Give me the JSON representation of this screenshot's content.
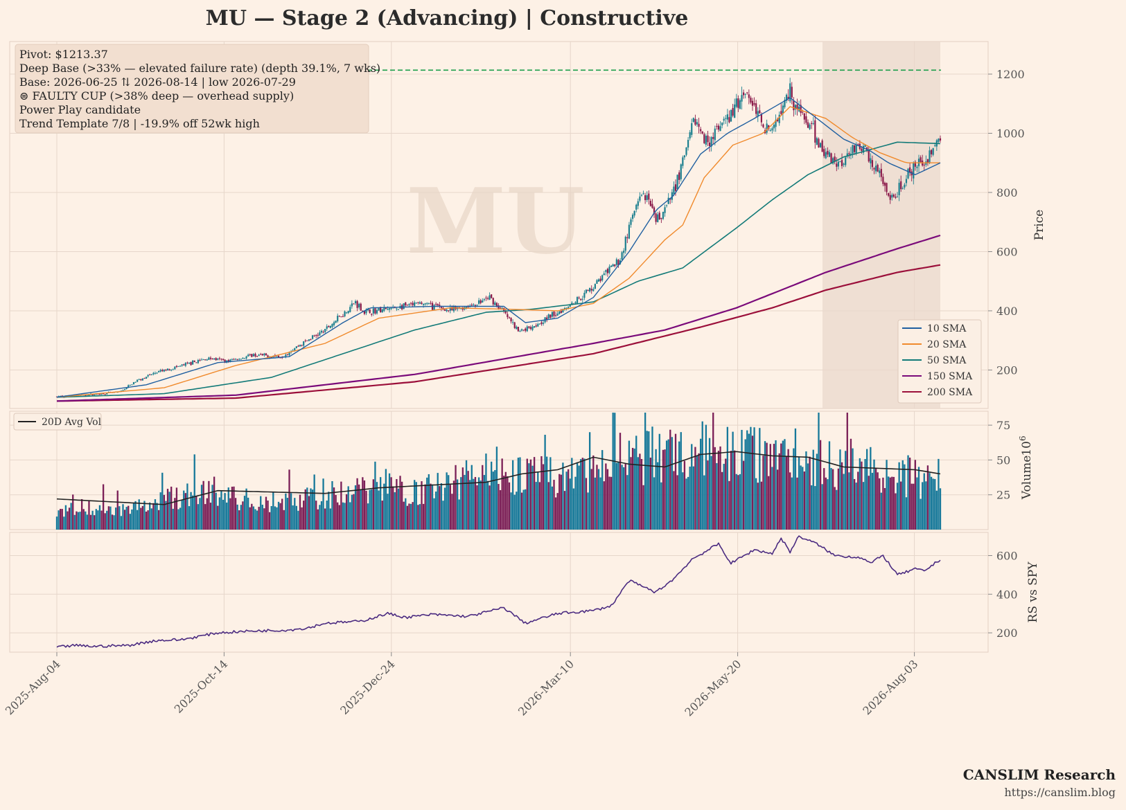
{
  "title": "MU  —  Stage 2 (Advancing)  |  Constructive",
  "watermark": "MU",
  "branding": {
    "name": "CANSLIM Research",
    "url": "https://canslim.blog"
  },
  "annotation_lines": [
    "Pivot: $1213.37",
    "Deep Base (>33% — elevated failure rate)  (depth 39.1%, 7 wks)",
    "Base: 2026-06-25 ⇅ 2026-08-14  |  low 2026-07-29",
    "⊜ FAULTY CUP (>38% deep — overhead supply)",
    "Power Play candidate",
    "Trend Template 7/8  |  -19.9% off 52wk high"
  ],
  "colors": {
    "background": "#fdf1e6",
    "up": "#1b7f8e",
    "down": "#8b1a4a",
    "vol_up": "#17799a",
    "vol_down": "#7b1f57",
    "sma10": "#1f5fa0",
    "sma20": "#f08a2c",
    "sma50": "#127a78",
    "sma150": "#7a0a7a",
    "sma200": "#9b0f3a",
    "pivot": "#1a9e4a",
    "rs": "#4a2a80",
    "avgvol": "#222222",
    "base_shade": "#e9d8cc"
  },
  "chart_data": {
    "type": "candlestick",
    "x_ticks": [
      "2025-Aug-04",
      "2025-Oct-14",
      "2025-Dec-24",
      "2026-Mar-10",
      "2026-May-20",
      "2026-Aug-03"
    ],
    "date_range": [
      "2025-08-04",
      "2026-08-14"
    ],
    "base_range": [
      "2026-06-25",
      "2026-08-14"
    ],
    "pivot": 1213.37,
    "price_panel": {
      "ylabel": "Price",
      "yticks": [
        200,
        400,
        600,
        800,
        1000,
        1200
      ],
      "ylim": [
        70,
        1310
      ],
      "price_path": [
        [
          0,
          110
        ],
        [
          15,
          115
        ],
        [
          35,
          125
        ],
        [
          45,
          165
        ],
        [
          55,
          190
        ],
        [
          70,
          215
        ],
        [
          85,
          240
        ],
        [
          95,
          230
        ],
        [
          110,
          250
        ],
        [
          125,
          245
        ],
        [
          140,
          300
        ],
        [
          150,
          335
        ],
        [
          160,
          390
        ],
        [
          167,
          430
        ],
        [
          172,
          395
        ],
        [
          185,
          405
        ],
        [
          205,
          425
        ],
        [
          220,
          400
        ],
        [
          235,
          425
        ],
        [
          242,
          445
        ],
        [
          250,
          395
        ],
        [
          258,
          330
        ],
        [
          268,
          355
        ],
        [
          280,
          395
        ],
        [
          295,
          455
        ],
        [
          305,
          515
        ],
        [
          315,
          575
        ],
        [
          322,
          720
        ],
        [
          328,
          800
        ],
        [
          335,
          700
        ],
        [
          342,
          760
        ],
        [
          350,
          900
        ],
        [
          357,
          1050
        ],
        [
          362,
          970
        ],
        [
          370,
          1010
        ],
        [
          378,
          1070
        ],
        [
          385,
          1150
        ],
        [
          392,
          1060
        ],
        [
          400,
          1000
        ],
        [
          406,
          1120
        ],
        [
          410,
          1150
        ],
        [
          414,
          1080
        ],
        [
          418,
          1050
        ],
        [
          425,
          980
        ],
        [
          430,
          930
        ],
        [
          438,
          900
        ],
        [
          446,
          960
        ],
        [
          452,
          940
        ],
        [
          458,
          880
        ],
        [
          462,
          830
        ],
        [
          466,
          760
        ],
        [
          472,
          820
        ],
        [
          478,
          870
        ],
        [
          484,
          900
        ],
        [
          489,
          945
        ],
        [
          494,
          975
        ]
      ],
      "sma10": [
        [
          0,
          108
        ],
        [
          50,
          150
        ],
        [
          90,
          225
        ],
        [
          130,
          245
        ],
        [
          160,
          360
        ],
        [
          175,
          410
        ],
        [
          210,
          415
        ],
        [
          250,
          415
        ],
        [
          262,
          360
        ],
        [
          280,
          375
        ],
        [
          300,
          445
        ],
        [
          320,
          600
        ],
        [
          335,
          740
        ],
        [
          345,
          790
        ],
        [
          360,
          930
        ],
        [
          375,
          1000
        ],
        [
          390,
          1050
        ],
        [
          410,
          1120
        ],
        [
          425,
          1050
        ],
        [
          440,
          980
        ],
        [
          455,
          940
        ],
        [
          465,
          900
        ],
        [
          480,
          860
        ],
        [
          494,
          900
        ]
      ],
      "sma20": [
        [
          0,
          108
        ],
        [
          60,
          140
        ],
        [
          100,
          215
        ],
        [
          150,
          290
        ],
        [
          180,
          375
        ],
        [
          220,
          410
        ],
        [
          255,
          405
        ],
        [
          280,
          400
        ],
        [
          300,
          425
        ],
        [
          320,
          510
        ],
        [
          340,
          640
        ],
        [
          350,
          690
        ],
        [
          362,
          850
        ],
        [
          378,
          960
        ],
        [
          395,
          1000
        ],
        [
          410,
          1090
        ],
        [
          430,
          1050
        ],
        [
          445,
          985
        ],
        [
          460,
          935
        ],
        [
          475,
          900
        ],
        [
          494,
          900
        ]
      ],
      "sma50": [
        [
          0,
          108
        ],
        [
          60,
          120
        ],
        [
          120,
          175
        ],
        [
          160,
          255
        ],
        [
          200,
          335
        ],
        [
          240,
          395
        ],
        [
          265,
          405
        ],
        [
          300,
          430
        ],
        [
          325,
          500
        ],
        [
          350,
          545
        ],
        [
          380,
          680
        ],
        [
          400,
          775
        ],
        [
          420,
          860
        ],
        [
          440,
          920
        ],
        [
          470,
          970
        ],
        [
          494,
          965
        ]
      ],
      "sma150": [
        [
          0,
          95
        ],
        [
          100,
          115
        ],
        [
          200,
          185
        ],
        [
          300,
          290
        ],
        [
          340,
          335
        ],
        [
          380,
          410
        ],
        [
          430,
          530
        ],
        [
          470,
          610
        ],
        [
          494,
          655
        ]
      ],
      "sma200": [
        [
          0,
          95
        ],
        [
          100,
          105
        ],
        [
          200,
          160
        ],
        [
          300,
          255
        ],
        [
          360,
          345
        ],
        [
          400,
          410
        ],
        [
          430,
          470
        ],
        [
          470,
          530
        ],
        [
          494,
          555
        ]
      ],
      "legend": [
        "10 SMA",
        "20 SMA",
        "50 SMA",
        "150 SMA",
        "200 SMA"
      ],
      "legend_loc": "lower-right"
    },
    "volume_panel": {
      "ylabel": "Volume",
      "unit": "10^6",
      "yticks": [
        25,
        50,
        75
      ],
      "ylim": [
        0,
        85
      ],
      "volume_anchors": [
        [
          0,
          15
        ],
        [
          20,
          18
        ],
        [
          40,
          16
        ],
        [
          60,
          22
        ],
        [
          80,
          30
        ],
        [
          100,
          24
        ],
        [
          120,
          20
        ],
        [
          140,
          25
        ],
        [
          160,
          28
        ],
        [
          180,
          35
        ],
        [
          200,
          30
        ],
        [
          220,
          34
        ],
        [
          240,
          50
        ],
        [
          260,
          42
        ],
        [
          280,
          40
        ],
        [
          300,
          44
        ],
        [
          320,
          55
        ],
        [
          340,
          58
        ],
        [
          360,
          62
        ],
        [
          380,
          58
        ],
        [
          400,
          60
        ],
        [
          420,
          52
        ],
        [
          440,
          50
        ],
        [
          460,
          48
        ],
        [
          480,
          40
        ],
        [
          494,
          35
        ]
      ],
      "avg_line": [
        [
          0,
          22
        ],
        [
          30,
          20
        ],
        [
          60,
          18
        ],
        [
          90,
          28
        ],
        [
          120,
          27
        ],
        [
          150,
          26
        ],
        [
          180,
          30
        ],
        [
          210,
          32
        ],
        [
          240,
          34
        ],
        [
          260,
          40
        ],
        [
          280,
          43
        ],
        [
          300,
          52
        ],
        [
          320,
          47
        ],
        [
          340,
          45
        ],
        [
          360,
          54
        ],
        [
          380,
          56
        ],
        [
          400,
          53
        ],
        [
          420,
          52
        ],
        [
          440,
          45
        ],
        [
          460,
          44
        ],
        [
          480,
          43
        ],
        [
          494,
          40
        ]
      ],
      "legend": [
        "20D Avg Vol"
      ],
      "legend_loc": "upper-left"
    },
    "rs_panel": {
      "ylabel": "RS vs SPY",
      "yticks": [
        200,
        400,
        600
      ],
      "ylim": [
        100,
        720
      ],
      "rs_line": [
        [
          0,
          125
        ],
        [
          10,
          135
        ],
        [
          20,
          130
        ],
        [
          40,
          135
        ],
        [
          55,
          160
        ],
        [
          70,
          165
        ],
        [
          90,
          200
        ],
        [
          110,
          210
        ],
        [
          130,
          215
        ],
        [
          140,
          225
        ],
        [
          150,
          250
        ],
        [
          170,
          260
        ],
        [
          185,
          300
        ],
        [
          195,
          280
        ],
        [
          210,
          295
        ],
        [
          230,
          285
        ],
        [
          250,
          330
        ],
        [
          262,
          250
        ],
        [
          280,
          300
        ],
        [
          300,
          315
        ],
        [
          310,
          340
        ],
        [
          320,
          470
        ],
        [
          335,
          410
        ],
        [
          345,
          480
        ],
        [
          355,
          580
        ],
        [
          370,
          660
        ],
        [
          377,
          560
        ],
        [
          390,
          630
        ],
        [
          400,
          610
        ],
        [
          405,
          690
        ],
        [
          410,
          620
        ],
        [
          415,
          700
        ],
        [
          425,
          660
        ],
        [
          435,
          600
        ],
        [
          450,
          590
        ],
        [
          455,
          560
        ],
        [
          462,
          600
        ],
        [
          470,
          500
        ],
        [
          480,
          530
        ],
        [
          485,
          520
        ],
        [
          494,
          580
        ]
      ]
    }
  }
}
